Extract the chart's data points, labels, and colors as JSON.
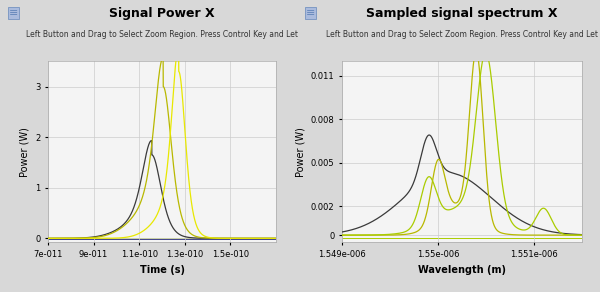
{
  "left_title": "Signal Power X",
  "left_subtitle": "Left Button and Drag to Select Zoom Region. Press Control Key and Let",
  "left_xlabel": "Time (s)",
  "left_ylabel": "Power (W)",
  "left_xlim": [
    7e-11,
    1.7e-10
  ],
  "left_ylim": [
    -0.08,
    3.5
  ],
  "left_xticks": [
    7e-11,
    9e-11,
    1.1e-10,
    1.3e-10,
    1.5e-10
  ],
  "left_xtick_labels": [
    "7e-011",
    "9e-011",
    "1.1e-010",
    "1.3e-010",
    "1.5e-010"
  ],
  "left_yticks": [
    0,
    1,
    2,
    3
  ],
  "right_title": "Sampled signal spectrum X",
  "right_subtitle": "Left Button and Drag to Select Zoom Region. Press Control Key and Let",
  "right_xlabel": "Wavelength (m)",
  "right_ylabel": "Power (W)",
  "right_xlim": [
    1.549e-06,
    1.5515e-06
  ],
  "right_ylim": [
    -0.0005,
    0.012
  ],
  "right_xticks": [
    1.549e-06,
    1.55e-06,
    1.551e-06
  ],
  "right_xtick_labels": [
    "1.549e-006",
    "1.55e-006",
    "1.551e-006"
  ],
  "right_yticks": [
    0,
    0.002,
    0.005,
    0.008,
    0.011
  ],
  "fig_bg": "#d8d8d8",
  "plot_bg": "#f4f4f4",
  "grid_color": "#cccccc",
  "color_black": "#3a3a3a",
  "color_olive": "#b8b800",
  "color_yellow": "#e8e800",
  "color_green": "#aacc00",
  "color_flat": "#aacc00",
  "color_blue": "#000080"
}
